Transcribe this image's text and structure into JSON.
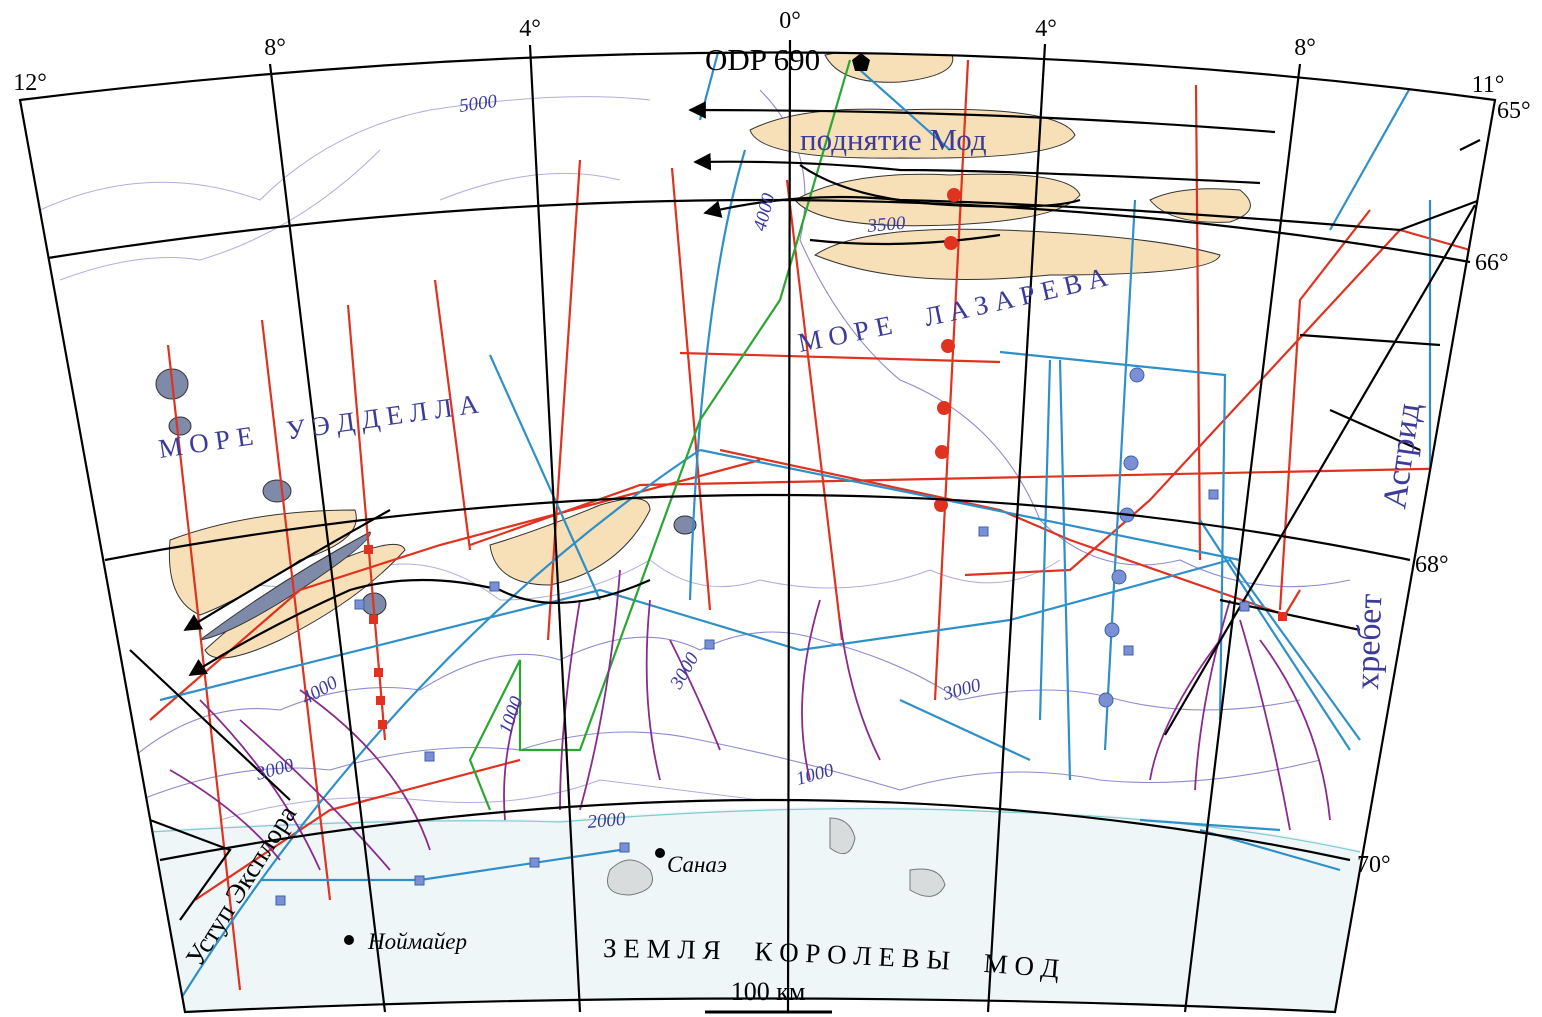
{
  "graticule": {
    "longitude": [
      "12°",
      "8°",
      "4°",
      "0°",
      "4°",
      "8°",
      "11°"
    ],
    "latitude": [
      "65°",
      "66°",
      "68°",
      "70°"
    ]
  },
  "isobaths": [
    "5000",
    "4000",
    "3500",
    "4000",
    "3000",
    "3000",
    "3000",
    "1000",
    "1000",
    "2000"
  ],
  "features": {
    "drill_site": "ODP 690",
    "rise": "поднятие Мод",
    "ridge_1": "хребет",
    "ridge_2": "Астрид",
    "escarpment": "Уступ Эксплора"
  },
  "seas": {
    "weddell": "М О Р Е     У Э Д Д Е Л Л А",
    "lazarev": "М О Р Е     Л А З А Р Е В А"
  },
  "land": "З Е М Л Я     К О Р О Л Е В Ы     М О Д",
  "stations": [
    "Санаэ",
    "Ноймайер"
  ],
  "scale_bar": "100 км"
}
